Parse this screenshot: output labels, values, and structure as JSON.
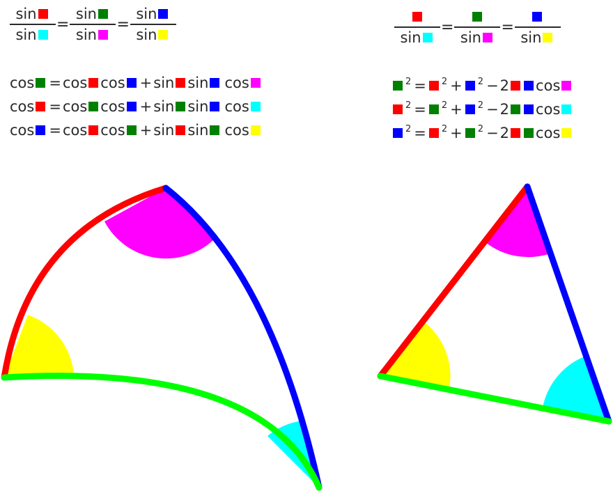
{
  "colors": {
    "red": "#ff0000",
    "green": "#008000",
    "blue": "#0000ff",
    "cyan": "#00ffff",
    "magenta": "#ff00ff",
    "yellow": "#ffff00",
    "lime": "#00ff00"
  },
  "text": {
    "sin": "sin",
    "cos": "cos",
    "eq": "=",
    "plus": "+",
    "minus": "−",
    "two": "2",
    "sup2": "2"
  },
  "spherical_sine_law": [
    {
      "num": "red",
      "den": "cyan"
    },
    {
      "num": "green",
      "den": "magenta"
    },
    {
      "num": "blue",
      "den": "yellow"
    }
  ],
  "spherical_cosine_laws": [
    {
      "lhs": "green",
      "a": "red",
      "b": "blue",
      "c": "magenta"
    },
    {
      "lhs": "red",
      "a": "green",
      "b": "blue",
      "c": "cyan"
    },
    {
      "lhs": "blue",
      "a": "red",
      "b": "green",
      "c": "yellow"
    }
  ],
  "plane_sine_law": [
    {
      "num": "red",
      "den": "cyan"
    },
    {
      "num": "green",
      "den": "magenta"
    },
    {
      "num": "blue",
      "den": "yellow"
    }
  ],
  "plane_cosine_laws": [
    {
      "lhs": "green",
      "a": "red",
      "b": "blue",
      "c": "magenta"
    },
    {
      "lhs": "red",
      "a": "green",
      "b": "blue",
      "c": "cyan"
    },
    {
      "lhs": "blue",
      "a": "red",
      "b": "green",
      "c": "yellow"
    }
  ]
}
